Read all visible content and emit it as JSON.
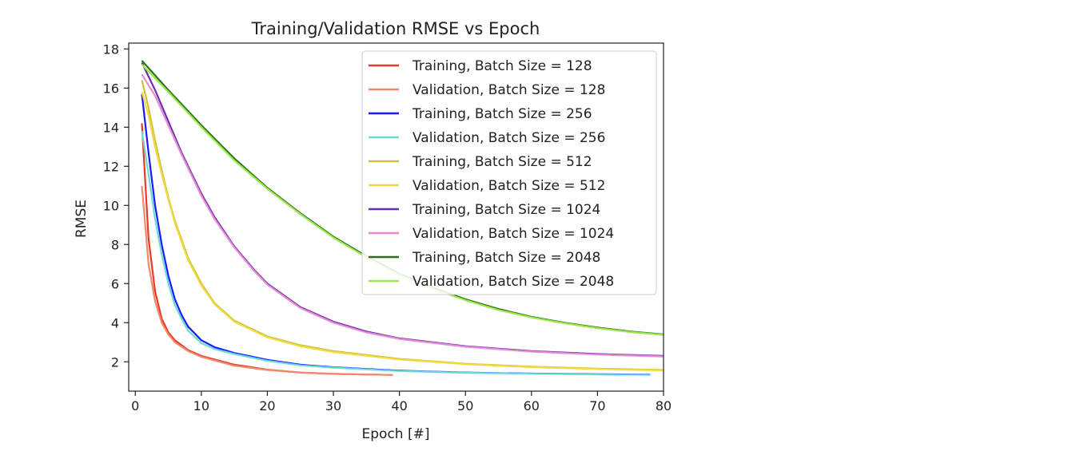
{
  "chart_data": {
    "type": "line",
    "title": "Training/Validation RMSE vs Epoch",
    "xlabel": "Epoch [#]",
    "ylabel": "RMSE",
    "xlim": [
      -1,
      80
    ],
    "ylim": [
      0.5,
      18.3
    ],
    "xticks": [
      0,
      10,
      20,
      30,
      40,
      50,
      60,
      70,
      80
    ],
    "yticks": [
      2,
      4,
      6,
      8,
      10,
      12,
      14,
      16,
      18
    ],
    "grid": false,
    "legend_position": "upper right",
    "series": [
      {
        "name": "Training, Batch Size = 128",
        "color": "#e8392b",
        "x": [
          1,
          2,
          3,
          4,
          5,
          6,
          8,
          10,
          15,
          20,
          25,
          30,
          35,
          39
        ],
        "y": [
          14.2,
          8.3,
          5.6,
          4.2,
          3.5,
          3.1,
          2.6,
          2.3,
          1.85,
          1.6,
          1.45,
          1.38,
          1.35,
          1.33
        ]
      },
      {
        "name": "Validation, Batch Size = 128",
        "color": "#f08a6a",
        "x": [
          1,
          2,
          3,
          4,
          5,
          6,
          8,
          10,
          15,
          20,
          25,
          30,
          35,
          39
        ],
        "y": [
          11.0,
          7.0,
          5.1,
          4.0,
          3.4,
          3.0,
          2.55,
          2.25,
          1.8,
          1.58,
          1.45,
          1.38,
          1.35,
          1.33
        ]
      },
      {
        "name": "Training, Batch Size = 256",
        "color": "#1a1aff",
        "x": [
          1,
          2,
          3,
          4,
          5,
          6,
          7,
          8,
          10,
          12,
          15,
          20,
          25,
          30,
          40,
          50,
          60,
          70,
          78
        ],
        "y": [
          15.7,
          12.7,
          10.0,
          8.0,
          6.4,
          5.2,
          4.4,
          3.8,
          3.1,
          2.75,
          2.45,
          2.1,
          1.85,
          1.72,
          1.55,
          1.45,
          1.4,
          1.36,
          1.34
        ]
      },
      {
        "name": "Validation, Batch Size = 256",
        "color": "#6fd8d8",
        "x": [
          1,
          2,
          3,
          4,
          5,
          6,
          7,
          8,
          10,
          12,
          15,
          20,
          25,
          30,
          40,
          50,
          60,
          70,
          78
        ],
        "y": [
          13.8,
          11.6,
          9.3,
          7.5,
          6.0,
          4.9,
          4.2,
          3.6,
          2.95,
          2.65,
          2.4,
          2.05,
          1.82,
          1.7,
          1.53,
          1.44,
          1.39,
          1.35,
          1.33
        ]
      },
      {
        "name": "Training, Batch Size = 512",
        "color": "#c8c43c",
        "x": [
          1,
          2,
          3,
          4,
          5,
          6,
          8,
          10,
          12,
          15,
          20,
          25,
          30,
          40,
          50,
          60,
          70,
          80
        ],
        "y": [
          16.4,
          15.0,
          13.3,
          11.8,
          10.4,
          9.2,
          7.3,
          6.0,
          5.0,
          4.1,
          3.3,
          2.85,
          2.55,
          2.15,
          1.9,
          1.75,
          1.65,
          1.58
        ]
      },
      {
        "name": "Validation, Batch Size = 512",
        "color": "#f5d742",
        "x": [
          1,
          2,
          3,
          4,
          5,
          6,
          8,
          10,
          12,
          15,
          20,
          25,
          30,
          40,
          50,
          60,
          70,
          80
        ],
        "y": [
          15.8,
          14.6,
          13.0,
          11.6,
          10.3,
          9.1,
          7.2,
          5.9,
          4.95,
          4.05,
          3.25,
          2.8,
          2.5,
          2.12,
          1.88,
          1.73,
          1.63,
          1.56
        ]
      },
      {
        "name": "Training, Batch Size = 1024",
        "color": "#6a2fb0",
        "x": [
          1,
          3,
          5,
          7,
          10,
          12,
          15,
          18,
          20,
          25,
          30,
          35,
          40,
          50,
          60,
          70,
          80
        ],
        "y": [
          17.3,
          15.9,
          14.3,
          12.7,
          10.6,
          9.4,
          7.9,
          6.7,
          6.0,
          4.8,
          4.05,
          3.55,
          3.2,
          2.8,
          2.55,
          2.4,
          2.3
        ]
      },
      {
        "name": "Validation, Batch Size = 1024",
        "color": "#e98ad6",
        "x": [
          1,
          3,
          5,
          7,
          10,
          12,
          15,
          18,
          20,
          25,
          30,
          35,
          40,
          50,
          60,
          70,
          80
        ],
        "y": [
          16.7,
          15.6,
          14.1,
          12.6,
          10.5,
          9.3,
          7.85,
          6.65,
          5.95,
          4.75,
          4.0,
          3.5,
          3.17,
          2.77,
          2.52,
          2.37,
          2.27
        ]
      },
      {
        "name": "Training, Batch Size = 2048",
        "color": "#2a6e1e",
        "x": [
          1,
          5,
          10,
          15,
          20,
          25,
          30,
          35,
          40,
          45,
          50,
          55,
          60,
          65,
          70,
          75,
          80
        ],
        "y": [
          17.4,
          15.9,
          14.1,
          12.4,
          10.9,
          9.6,
          8.4,
          7.4,
          6.5,
          5.8,
          5.2,
          4.7,
          4.3,
          4.0,
          3.75,
          3.55,
          3.4
        ]
      },
      {
        "name": "Validation, Batch Size = 2048",
        "color": "#9be84a",
        "x": [
          1,
          5,
          10,
          15,
          20,
          25,
          30,
          35,
          40,
          45,
          50,
          55,
          60,
          65,
          70,
          75,
          80
        ],
        "y": [
          17.2,
          15.8,
          14.0,
          12.3,
          10.85,
          9.55,
          8.35,
          7.35,
          6.45,
          5.75,
          5.15,
          4.65,
          4.27,
          3.97,
          3.72,
          3.52,
          3.38
        ]
      }
    ]
  }
}
